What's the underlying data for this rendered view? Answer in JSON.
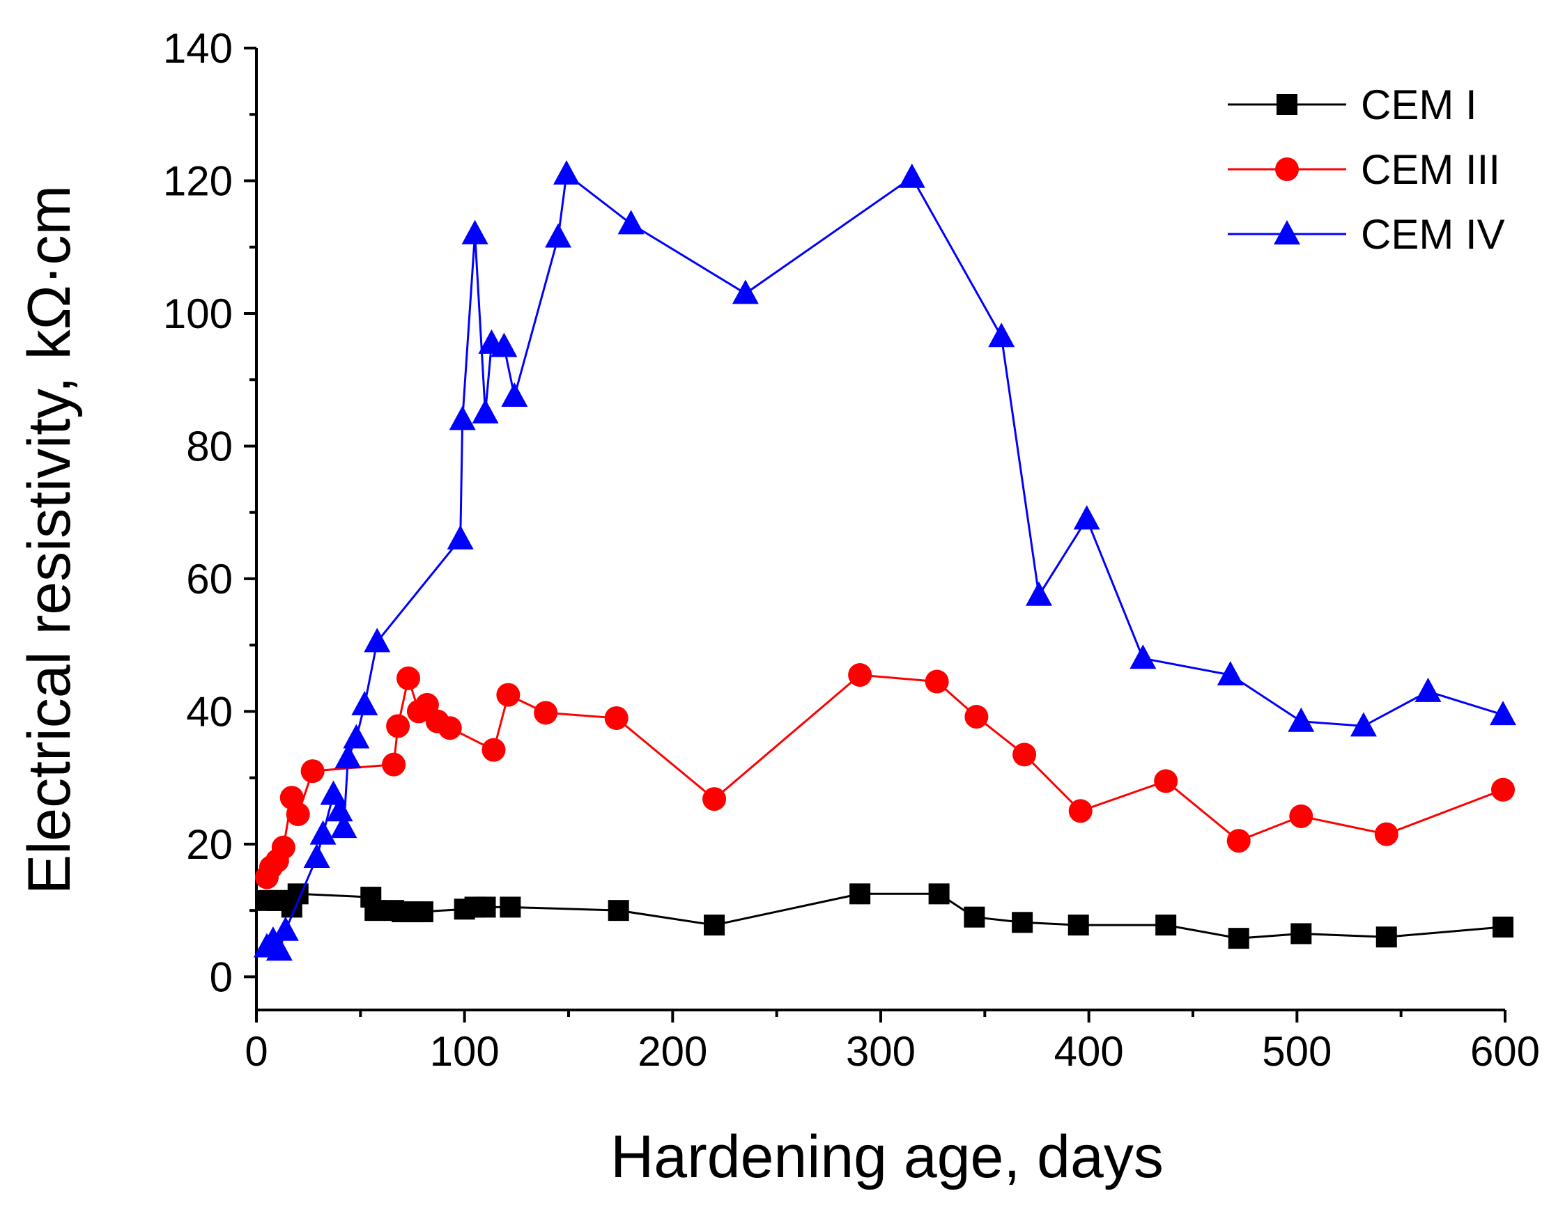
{
  "chart_data": {
    "type": "line",
    "xlabel": "Hardening age, days",
    "ylabel": "Electrical resistivity, kΩ·cm",
    "xlim": [
      0,
      600
    ],
    "ylim": [
      -5,
      140
    ],
    "x_ticks": [
      0,
      100,
      200,
      300,
      400,
      500,
      600
    ],
    "y_ticks": [
      0,
      20,
      40,
      60,
      80,
      100,
      120,
      140
    ],
    "x_tick_labels": [
      "0",
      "100",
      "200",
      "300",
      "400",
      "500",
      "600"
    ],
    "y_tick_labels": [
      "0",
      "20",
      "40",
      "60",
      "80",
      "100",
      "120",
      "140"
    ],
    "grid": false,
    "legend_position": "top-right",
    "series": [
      {
        "name": "CEM I",
        "color": "#000000",
        "marker": "square",
        "points": [
          [
            5,
            11.5
          ],
          [
            10,
            11.5
          ],
          [
            14,
            11.5
          ],
          [
            17,
            10.5
          ],
          [
            20,
            12.5
          ],
          [
            55,
            12
          ],
          [
            57,
            10
          ],
          [
            66,
            10
          ],
          [
            70,
            9.8
          ],
          [
            75,
            9.8
          ],
          [
            80,
            9.8
          ],
          [
            100,
            10.2
          ],
          [
            105,
            10.5
          ],
          [
            110,
            10.5
          ],
          [
            122,
            10.5
          ],
          [
            174,
            10
          ],
          [
            220,
            7.8
          ],
          [
            290,
            12.5
          ],
          [
            328,
            12.5
          ],
          [
            345,
            9
          ],
          [
            368,
            8.2
          ],
          [
            395,
            7.8
          ],
          [
            437,
            7.8
          ],
          [
            472,
            5.8
          ],
          [
            502,
            6.5
          ],
          [
            543,
            6
          ],
          [
            599,
            7.5
          ]
        ]
      },
      {
        "name": "CEM III",
        "color": "#ff0000",
        "marker": "circle",
        "points": [
          [
            5,
            15
          ],
          [
            7,
            16.5
          ],
          [
            10,
            17.5
          ],
          [
            13,
            19.5
          ],
          [
            17,
            27
          ],
          [
            20,
            24.5
          ],
          [
            27,
            31
          ],
          [
            66,
            32
          ],
          [
            68,
            37.8
          ],
          [
            73,
            45
          ],
          [
            78,
            40
          ],
          [
            82,
            41
          ],
          [
            87,
            38.5
          ],
          [
            93,
            37.5
          ],
          [
            114,
            34.2
          ],
          [
            121,
            42.5
          ],
          [
            139,
            39.8
          ],
          [
            173,
            39
          ],
          [
            220,
            26.8
          ],
          [
            290,
            45.5
          ],
          [
            327,
            44.5
          ],
          [
            346,
            39.2
          ],
          [
            369,
            33.5
          ],
          [
            396,
            25
          ],
          [
            437,
            29.5
          ],
          [
            472,
            20.5
          ],
          [
            502,
            24.2
          ],
          [
            543,
            21.5
          ],
          [
            599,
            28.2
          ]
        ]
      },
      {
        "name": "CEM IV",
        "color": "#0000ff",
        "marker": "triangle",
        "points": [
          [
            5,
            4.5
          ],
          [
            8,
            5.5
          ],
          [
            11,
            4
          ],
          [
            14,
            7
          ],
          [
            29,
            18
          ],
          [
            32,
            21.5
          ],
          [
            37,
            27.5
          ],
          [
            40,
            25
          ],
          [
            42,
            22.5
          ],
          [
            44,
            33
          ],
          [
            48,
            36
          ],
          [
            52,
            41
          ],
          [
            58,
            50.5
          ],
          [
            98,
            66
          ],
          [
            99,
            84
          ],
          [
            105,
            112
          ],
          [
            110,
            85
          ],
          [
            113,
            95.5
          ],
          [
            119,
            95
          ],
          [
            124,
            87.5
          ],
          [
            145,
            111.5
          ],
          [
            149,
            121
          ],
          [
            180,
            113.5
          ],
          [
            235,
            103
          ],
          [
            315,
            120.5
          ],
          [
            358,
            96.5
          ],
          [
            376,
            57.5
          ],
          [
            399,
            69
          ],
          [
            426,
            48
          ],
          [
            468,
            45.5
          ],
          [
            502,
            38.5
          ],
          [
            532,
            37.8
          ],
          [
            563,
            43
          ],
          [
            599,
            39.5
          ]
        ]
      }
    ]
  }
}
